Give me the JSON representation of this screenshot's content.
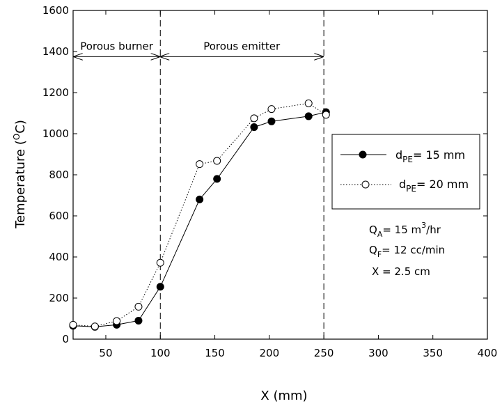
{
  "chart_data": {
    "type": "line",
    "xlabel": "X (mm)",
    "ylabel_main": "Temperature (",
    "ylabel_sup": "O",
    "ylabel_tail": "C)",
    "xlim": [
      20,
      400
    ],
    "ylim": [
      0,
      1600
    ],
    "xticks": [
      50,
      100,
      150,
      200,
      250,
      300,
      350,
      400
    ],
    "yticks": [
      0,
      200,
      400,
      600,
      800,
      1000,
      1200,
      1400,
      1600
    ],
    "grid": false,
    "legend_position": "right-middle",
    "series": [
      {
        "name_base": "d",
        "name_sub": "PE",
        "name_value": "= 15 mm",
        "marker": "filled-circle",
        "line": "solid",
        "x": [
          20,
          40,
          60,
          80,
          100,
          136,
          152,
          186,
          202,
          236,
          252
        ],
        "y": [
          65,
          60,
          70,
          90,
          255,
          680,
          780,
          1032,
          1060,
          1085,
          1105
        ]
      },
      {
        "name_base": "d",
        "name_sub": "PE",
        "name_value": "= 20 mm",
        "marker": "open-circle",
        "line": "dotted",
        "x": [
          20,
          40,
          60,
          80,
          100,
          136,
          152,
          186,
          202,
          236,
          252
        ],
        "y": [
          70,
          62,
          88,
          158,
          372,
          852,
          868,
          1075,
          1120,
          1148,
          1092
        ]
      }
    ],
    "regions": [
      {
        "label": "Porous burner",
        "x_start": 20,
        "x_end": 100,
        "y": 1375
      },
      {
        "label": "Porous emitter",
        "x_start": 100,
        "x_end": 250,
        "y": 1375
      }
    ],
    "vlines": [
      100,
      250
    ],
    "annotations": [
      {
        "main": "Q",
        "sub": "A",
        "rest": "= 15 m",
        "sup": "3",
        "tail": "/hr"
      },
      {
        "main": "Q",
        "sub": "F",
        "rest": "= 12 cc/min"
      },
      {
        "main": "X = 2.5 cm"
      }
    ]
  }
}
